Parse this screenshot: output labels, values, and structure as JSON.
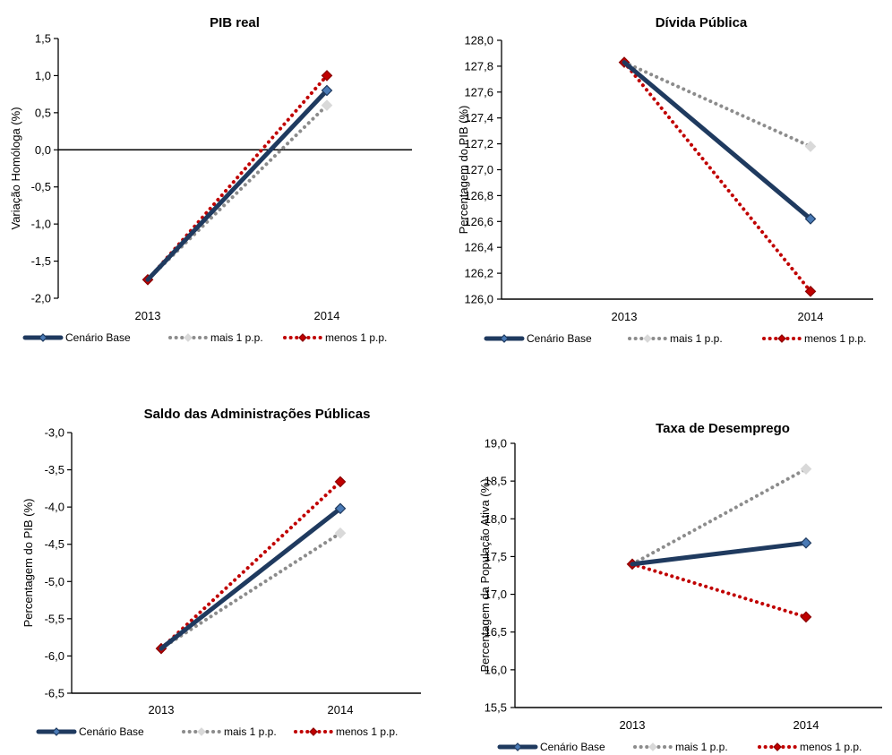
{
  "chart_data": [
    {
      "type": "line",
      "title": "PIB real",
      "ylabel": "Variação Homóloga (%)",
      "xlabel": "",
      "categories": [
        "2013",
        "2014"
      ],
      "ylim": [
        -2.0,
        1.5
      ],
      "ystep": 0.5,
      "yticks": [
        "-2,0",
        "-1,5",
        "-1,0",
        "-0,5",
        "0,0",
        "0,5",
        "1,0",
        "1,5"
      ],
      "zero_line": true,
      "grid": false,
      "legend_position": "bottom",
      "series": [
        {
          "name": "Cenário Base",
          "values": [
            -1.75,
            0.8
          ]
        },
        {
          "name": "mais 1 p.p.",
          "values": [
            -1.75,
            0.6
          ]
        },
        {
          "name": "menos 1 p.p.",
          "values": [
            -1.75,
            1.0
          ]
        }
      ]
    },
    {
      "type": "line",
      "title": "Dívida Pública",
      "ylabel": "Percentagem do PIB (%)",
      "xlabel": "",
      "categories": [
        "2013",
        "2014"
      ],
      "ylim": [
        126.0,
        128.0
      ],
      "ystep": 0.2,
      "yticks": [
        "126,0",
        "126,2",
        "126,4",
        "126,6",
        "126,8",
        "127,0",
        "127,2",
        "127,4",
        "127,6",
        "127,8",
        "128,0"
      ],
      "zero_line": false,
      "grid": false,
      "legend_position": "bottom",
      "series": [
        {
          "name": "Cenário Base",
          "values": [
            127.83,
            126.62
          ]
        },
        {
          "name": "mais 1 p.p.",
          "values": [
            127.83,
            127.18
          ]
        },
        {
          "name": "menos 1 p.p.",
          "values": [
            127.83,
            126.06
          ]
        }
      ]
    },
    {
      "type": "line",
      "title": "Saldo das Administrações Públicas",
      "ylabel": "Percentagem do PIB (%)",
      "xlabel": "",
      "categories": [
        "2013",
        "2014"
      ],
      "ylim": [
        -6.5,
        -3.0
      ],
      "ystep": 0.5,
      "yticks": [
        "-6,5",
        "-6,0",
        "-5,5",
        "-5,0",
        "-4,5",
        "-4,0",
        "-3,5",
        "-3,0"
      ],
      "zero_line": false,
      "grid": false,
      "legend_position": "bottom",
      "series": [
        {
          "name": "Cenário Base",
          "values": [
            -5.9,
            -4.02
          ]
        },
        {
          "name": "mais 1 p.p.",
          "values": [
            -5.9,
            -4.35
          ]
        },
        {
          "name": "menos 1 p.p.",
          "values": [
            -5.9,
            -3.66
          ]
        }
      ]
    },
    {
      "type": "line",
      "title": "Taxa de Desemprego",
      "ylabel": "Percentagem da População Ativa (%)",
      "xlabel": "",
      "categories": [
        "2013",
        "2014"
      ],
      "ylim": [
        15.5,
        19.0
      ],
      "ystep": 0.5,
      "yticks": [
        "15,5",
        "16,0",
        "16,5",
        "17,0",
        "17,5",
        "18,0",
        "18,5",
        "19,0"
      ],
      "zero_line": false,
      "grid": false,
      "legend_position": "bottom",
      "series": [
        {
          "name": "Cenário Base",
          "values": [
            17.4,
            17.68
          ]
        },
        {
          "name": "mais 1 p.p.",
          "values": [
            17.4,
            18.66
          ]
        },
        {
          "name": "menos 1 p.p.",
          "values": [
            17.4,
            16.7
          ]
        }
      ]
    }
  ],
  "style": {
    "colors": {
      "base": "#1f3a5f",
      "base_marker": "#4a7ab5",
      "mais": "#8c8c8c",
      "mais_marker": "#d9d9d9",
      "menos": "#c00000",
      "axis": "#000000"
    }
  }
}
